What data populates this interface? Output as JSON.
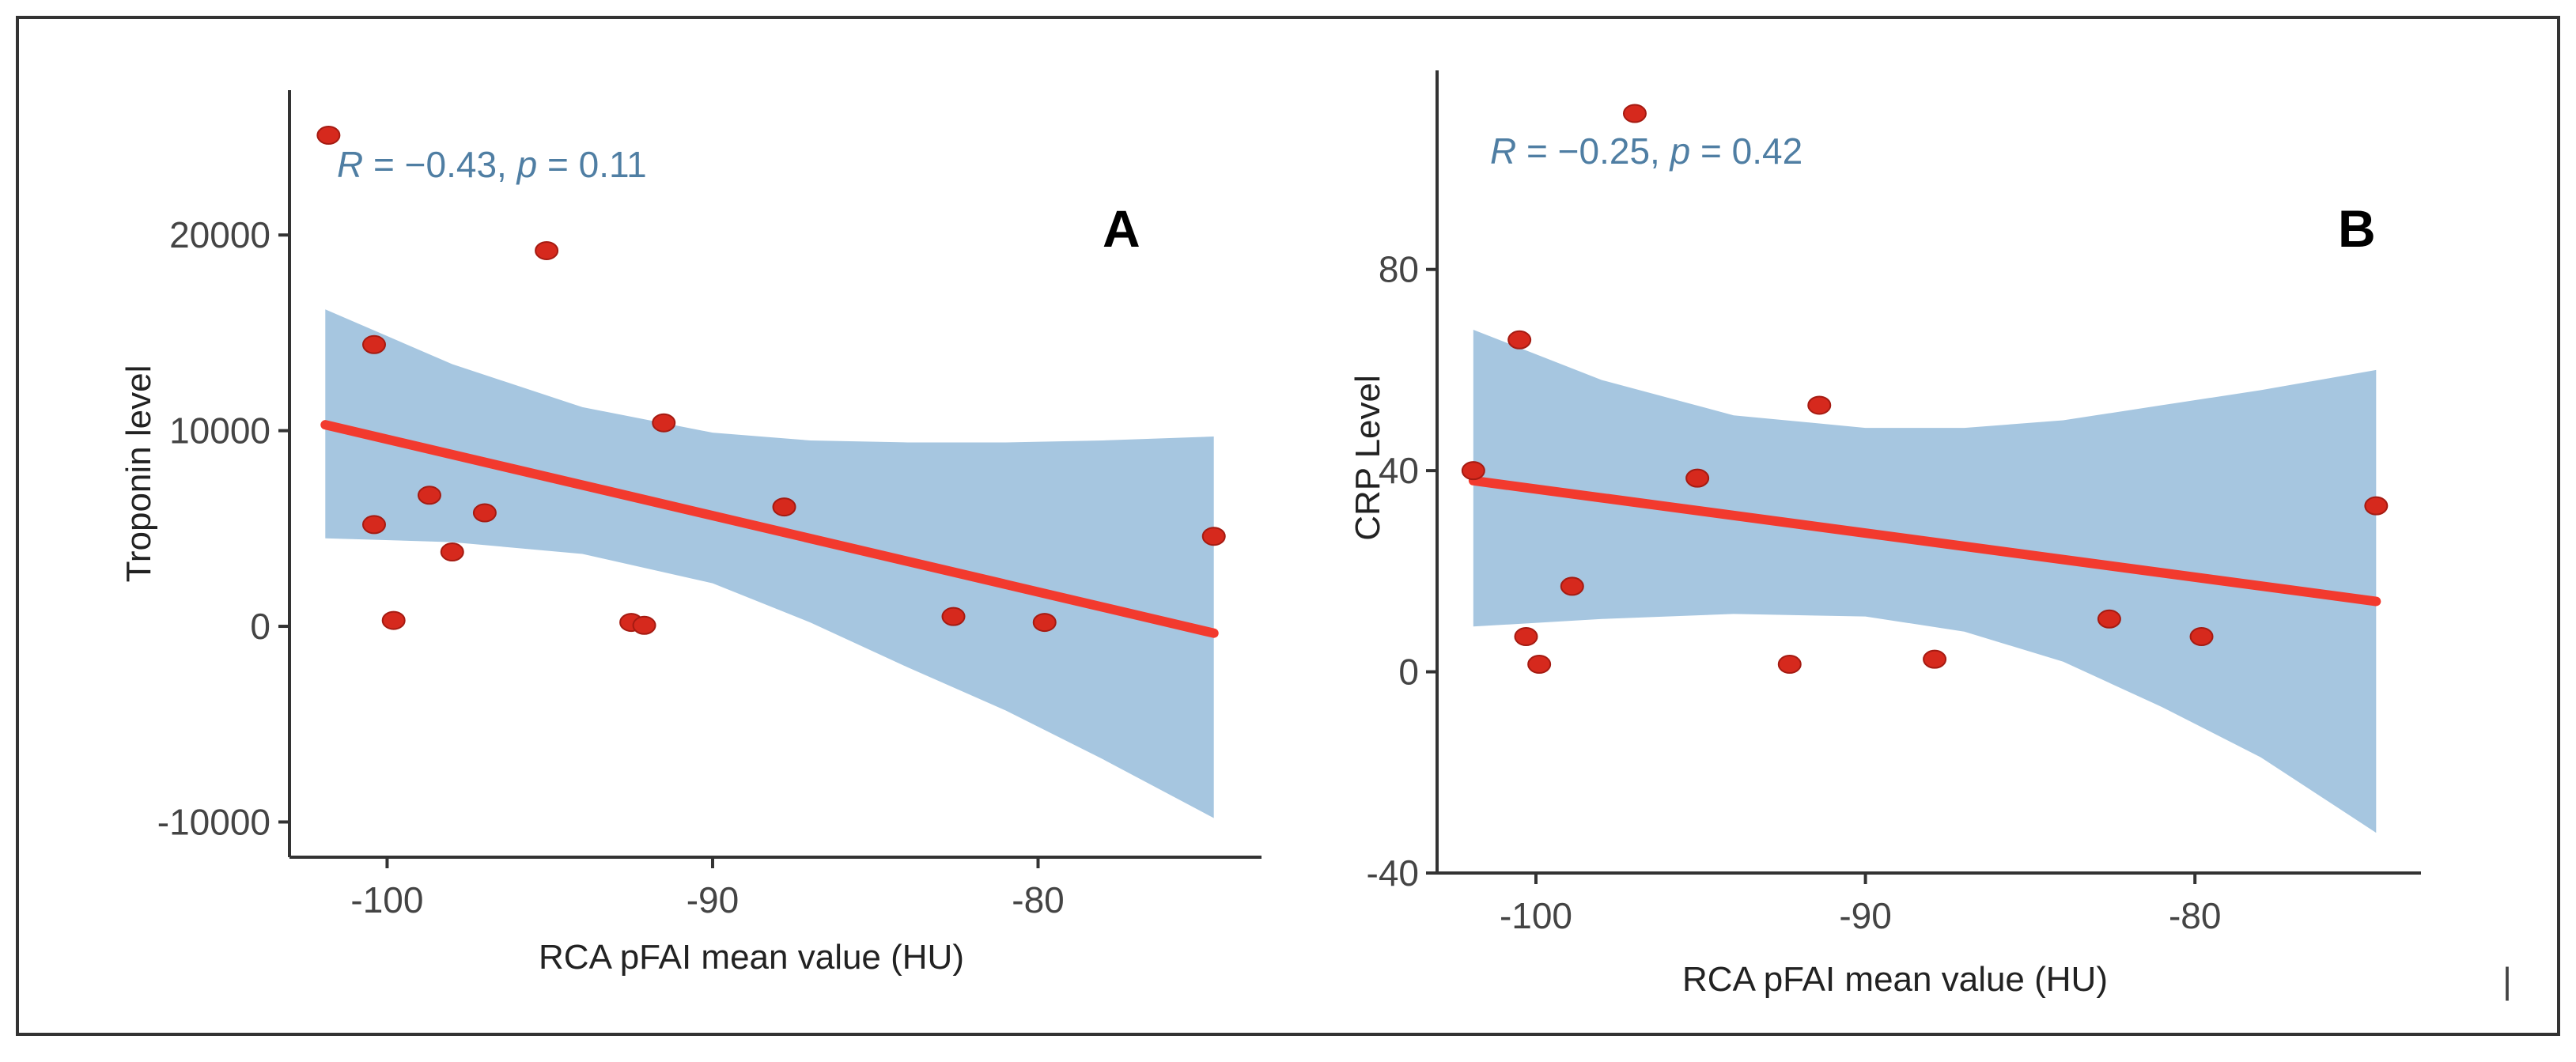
{
  "colors": {
    "points": "#d6291d",
    "points_stroke": "#a51b12",
    "fit_line": "#f23a2e",
    "confidence_band": "#a6c6e0",
    "stat_text": "#4f7ea3",
    "axis": "#333333"
  },
  "chart_data": [
    {
      "type": "scatter",
      "panel_label": "A",
      "title": "",
      "stat_label": {
        "R": "−0.43",
        "p": "0.11"
      },
      "xlabel": "RCA pFAI mean value (HU)",
      "ylabel": "Troponin level",
      "xlim": [
        -103,
        -73.5
      ],
      "ylim": [
        -11800,
        27000
      ],
      "x_ticks": [
        -100,
        -90,
        -80
      ],
      "y_ticks": [
        -10000,
        0,
        10000,
        20000
      ],
      "points": [
        {
          "x": -101.8,
          "y": 25100
        },
        {
          "x": -100.4,
          "y": 14400
        },
        {
          "x": -100.4,
          "y": 5200
        },
        {
          "x": -99.8,
          "y": 300
        },
        {
          "x": -98.7,
          "y": 6700
        },
        {
          "x": -98.0,
          "y": 3800
        },
        {
          "x": -97.0,
          "y": 5800
        },
        {
          "x": -95.1,
          "y": 19200
        },
        {
          "x": -92.5,
          "y": 200
        },
        {
          "x": -92.1,
          "y": 50
        },
        {
          "x": -91.5,
          "y": 10400
        },
        {
          "x": -87.8,
          "y": 6100
        },
        {
          "x": -82.6,
          "y": 500
        },
        {
          "x": -79.8,
          "y": 200
        },
        {
          "x": -74.6,
          "y": 4600
        }
      ],
      "fit_line": [
        {
          "x": -101.9,
          "y": 10300
        },
        {
          "x": -74.6,
          "y": -350
        }
      ],
      "confidence_band": {
        "x": [
          -101.9,
          -98,
          -94,
          -90,
          -87,
          -84,
          -81,
          -78,
          -74.6
        ],
        "upper": [
          16200,
          13400,
          11200,
          9900,
          9500,
          9400,
          9400,
          9500,
          9700
        ],
        "lower": [
          4500,
          4300,
          3700,
          2200,
          200,
          -2100,
          -4300,
          -6800,
          -9800
        ]
      }
    },
    {
      "type": "scatter",
      "panel_label": "B",
      "title": "",
      "stat_label": {
        "R": "−0.25",
        "p": "0.42"
      },
      "xlabel": "RCA pFAI mean value (HU)",
      "ylabel": "CRP Level",
      "xlim": [
        -103,
        -73.5
      ],
      "ylim": [
        -40,
        118
      ],
      "x_ticks": [
        -100,
        -90,
        -80
      ],
      "y_ticks": [
        -40,
        0,
        40,
        80
      ],
      "points": [
        {
          "x": -97.0,
          "y": 111
        },
        {
          "x": -100.5,
          "y": 66
        },
        {
          "x": -91.4,
          "y": 53
        },
        {
          "x": -101.9,
          "y": 40
        },
        {
          "x": -95.1,
          "y": 38.5
        },
        {
          "x": -98.9,
          "y": 17
        },
        {
          "x": -100.3,
          "y": 7
        },
        {
          "x": -99.9,
          "y": 1.5
        },
        {
          "x": -92.3,
          "y": 1.5
        },
        {
          "x": -87.9,
          "y": 2.5
        },
        {
          "x": -82.6,
          "y": 10.5
        },
        {
          "x": -79.8,
          "y": 7
        },
        {
          "x": -74.5,
          "y": 33
        }
      ],
      "fit_line": [
        {
          "x": -101.9,
          "y": 38
        },
        {
          "x": -74.5,
          "y": 14
        }
      ],
      "confidence_band": {
        "x": [
          -101.9,
          -98,
          -94,
          -90,
          -87,
          -84,
          -81,
          -78,
          -74.5
        ],
        "upper": [
          68,
          58,
          51,
          48.5,
          48.5,
          50,
          53,
          56,
          60
        ],
        "lower": [
          9,
          10.5,
          11.5,
          11,
          8,
          2,
          -7,
          -17,
          -32
        ]
      }
    }
  ],
  "trailing_mark": "|"
}
